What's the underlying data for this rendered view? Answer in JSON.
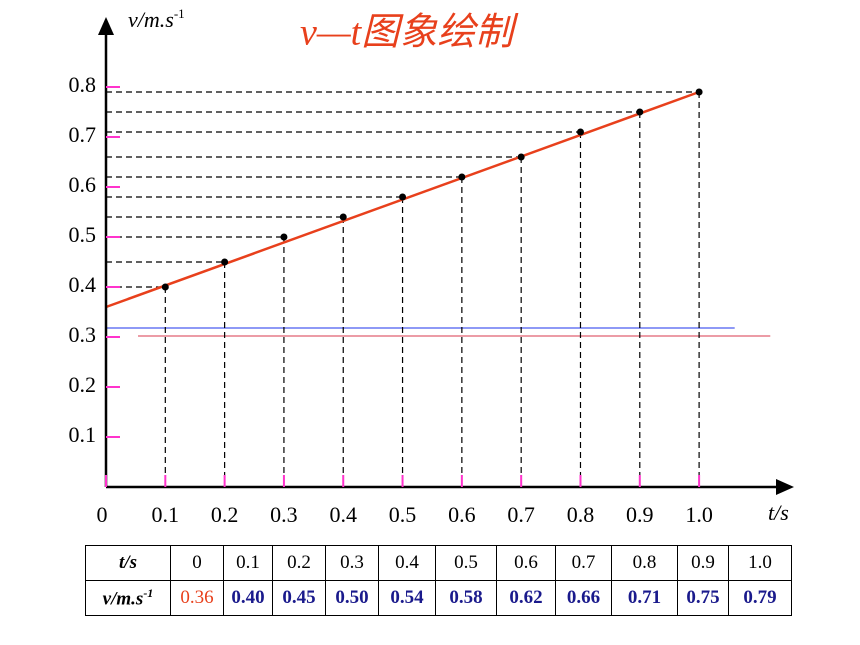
{
  "chart_data": {
    "type": "scatter",
    "title": "v—t图象绘制",
    "y_label": "v/m.s",
    "y_label_sup": "-1",
    "x_label": "t/s",
    "x": [
      0.1,
      0.2,
      0.3,
      0.4,
      0.5,
      0.6,
      0.7,
      0.8,
      0.9,
      1.0
    ],
    "values": [
      0.4,
      0.45,
      0.5,
      0.54,
      0.58,
      0.62,
      0.66,
      0.71,
      0.75,
      0.79
    ],
    "point_color": "#000000",
    "xlim": [
      0,
      1.16
    ],
    "ylim": [
      0,
      0.94
    ],
    "xticks": [
      0,
      0.1,
      0.2,
      0.3,
      0.4,
      0.5,
      0.6,
      0.7,
      0.8,
      0.9,
      {
        "value": 1,
        "label": "1.0"
      }
    ],
    "yticks": [
      0.1,
      0.2,
      0.3,
      0.4,
      0.5,
      0.6,
      0.7,
      0.8
    ],
    "tick_color": "#ff33cc",
    "fit_line": {
      "x": [
        0,
        1.0
      ],
      "y": [
        0.36,
        0.79
      ],
      "color": "#e8401c"
    },
    "reference_lines": [
      {
        "y": 0.318,
        "x": [
          0,
          1.06
        ],
        "color": "#4a5cf0"
      },
      {
        "y": 0.302,
        "x": [
          0.054,
          1.12
        ],
        "color": "#e06070"
      }
    ]
  },
  "table": {
    "header_label": "t/s",
    "header": [
      "0",
      "0.1",
      "0.2",
      "0.3",
      "0.4",
      "0.5",
      "0.6",
      "0.7",
      "0.8",
      "0.9",
      "1.0"
    ],
    "row_label": "v/m.s",
    "row_label_sup": "-1",
    "row": [
      "0.36",
      "0.40",
      "0.45",
      "0.50",
      "0.54",
      "0.58",
      "0.62",
      "0.66",
      "0.71",
      "0.75",
      "0.79"
    ]
  }
}
